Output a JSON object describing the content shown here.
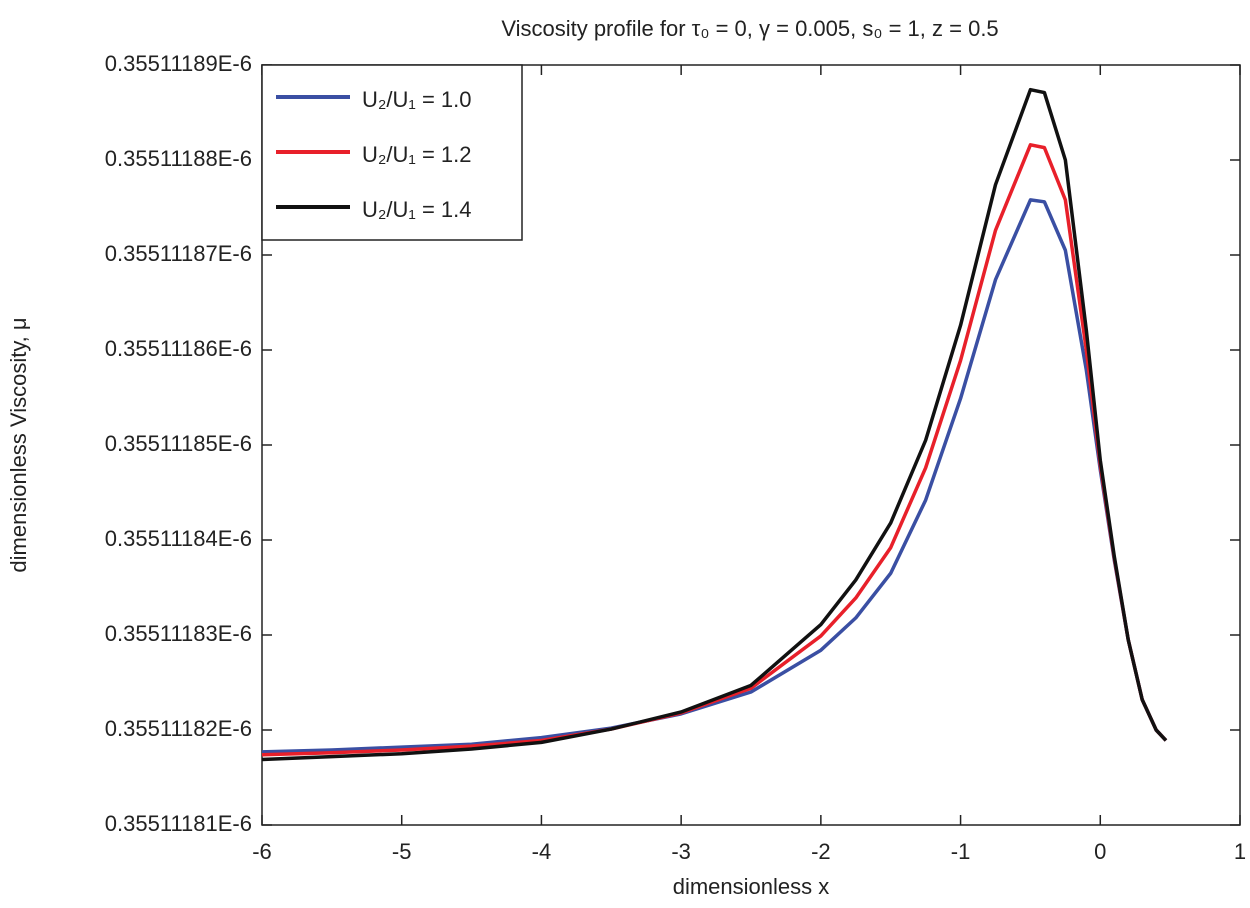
{
  "chart_data": {
    "type": "line",
    "title": "Viscosity profile for τ₀ = 0, γ = 0.005, s₀ = 1, z = 0.5",
    "x_label": "dimensionless x",
    "y_label": "dimensionless Viscosity, μ",
    "x": [
      -6,
      -5.5,
      -5,
      -4.5,
      -4,
      -3.5,
      -3,
      -2.5,
      -2,
      -1.75,
      -1.5,
      -1.25,
      -1,
      -0.75,
      -0.5,
      -0.4,
      -0.25,
      -0.1,
      0,
      0.1,
      0.2,
      0.3,
      0.4,
      0.47
    ],
    "series": [
      {
        "name": "U₂/U₁ = 1.0",
        "color": "#3a4fa3",
        "values": [
          3.551118177e-07,
          3.551118179e-07,
          3.551118182e-07,
          3.551118185e-07,
          3.551118192e-07,
          3.551118202e-07,
          3.551118217e-07,
          3.55111824e-07,
          3.551118284e-07,
          3.551118318e-07,
          3.551118365e-07,
          3.551118442e-07,
          3.551118549e-07,
          3.551118674e-07,
          3.551118758e-07,
          3.551118756e-07,
          3.551118705e-07,
          3.551118579e-07,
          3.551118474e-07,
          3.551118379e-07,
          3.551118295e-07,
          3.551118232e-07,
          3.5511182e-07,
          3.551118189e-07
        ]
      },
      {
        "name": "U₂/U₁ = 1.2",
        "color": "#e8202a",
        "values": [
          3.551118174e-07,
          3.551118176e-07,
          3.551118179e-07,
          3.551118183e-07,
          3.551118189e-07,
          3.551118201e-07,
          3.551118218e-07,
          3.551118244e-07,
          3.551118299e-07,
          3.551118339e-07,
          3.551118392e-07,
          3.551118476e-07,
          3.551118589e-07,
          3.551118726e-07,
          3.551118816e-07,
          3.551118813e-07,
          3.551118758e-07,
          3.5511186e-07,
          3.551118479e-07,
          3.551118381e-07,
          3.551118295e-07,
          3.551118232e-07,
          3.5511182e-07,
          3.551118189e-07
        ]
      },
      {
        "name": "U₂/U₁ = 1.4",
        "color": "#111111",
        "values": [
          3.551118169e-07,
          3.551118172e-07,
          3.551118175e-07,
          3.55111818e-07,
          3.551118187e-07,
          3.551118201e-07,
          3.551118219e-07,
          3.551118247e-07,
          3.551118311e-07,
          3.551118358e-07,
          3.551118418e-07,
          3.551118505e-07,
          3.551118626e-07,
          3.551118774e-07,
          3.551118874e-07,
          3.551118871e-07,
          3.5511188e-07,
          3.551118621e-07,
          3.551118484e-07,
          3.551118383e-07,
          3.551118295e-07,
          3.551118232e-07,
          3.5511182e-07,
          3.551118189e-07
        ]
      }
    ],
    "xlim": [
      -6,
      1
    ],
    "xticks": [
      -6,
      -5,
      -4,
      -3,
      -2,
      -1,
      0,
      1
    ],
    "ylim": [
      3.5511181e-07,
      3.5511189e-07
    ],
    "yticks": [
      {
        "value": 3.5511181e-07,
        "label": "0.35511181E-6"
      },
      {
        "value": 3.5511182e-07,
        "label": "0.35511182E-6"
      },
      {
        "value": 3.5511183e-07,
        "label": "0.35511183E-6"
      },
      {
        "value": 3.5511184e-07,
        "label": "0.35511184E-6"
      },
      {
        "value": 3.5511185e-07,
        "label": "0.35511185E-6"
      },
      {
        "value": 3.5511186e-07,
        "label": "0.35511186E-6"
      },
      {
        "value": 3.5511187e-07,
        "label": "0.35511187E-6"
      },
      {
        "value": 3.5511188e-07,
        "label": "0.35511188E-6"
      },
      {
        "value": 3.5511189e-07,
        "label": "0.35511189E-6"
      }
    ],
    "grid": false,
    "legend_position": "upper left"
  }
}
